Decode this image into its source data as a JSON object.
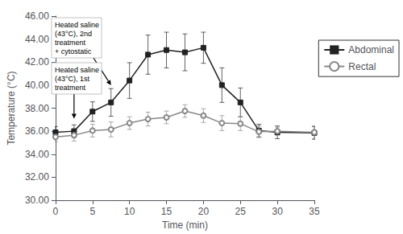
{
  "chart_data": {
    "type": "line",
    "xlabel": "Time (min)",
    "ylabel": "Temperature (°C)",
    "x": [
      0,
      2.5,
      5,
      7.5,
      10,
      12.5,
      15,
      17.5,
      20,
      22.5,
      25,
      27.5,
      30,
      35
    ],
    "series": [
      {
        "name": "Abdominal",
        "color": "#222222",
        "marker": "square",
        "values": [
          35.9,
          36.0,
          37.7,
          38.5,
          40.4,
          42.65,
          43.05,
          42.85,
          43.25,
          40.0,
          38.5,
          36.05,
          35.9,
          35.85
        ],
        "error": [
          0.5,
          0.55,
          0.85,
          1.2,
          1.55,
          1.7,
          1.55,
          1.6,
          1.35,
          1.5,
          1.25,
          0.55,
          0.55,
          0.55
        ]
      },
      {
        "name": "Rectal",
        "color": "#888888",
        "marker": "open_circle",
        "values": [
          35.5,
          35.65,
          36.05,
          36.15,
          36.7,
          37.05,
          37.2,
          37.75,
          37.35,
          36.7,
          36.65,
          35.95,
          36.0,
          35.9
        ],
        "error": [
          0.4,
          0.5,
          0.55,
          0.65,
          0.55,
          0.6,
          0.55,
          0.55,
          0.6,
          0.65,
          0.6,
          0.5,
          0.35,
          0.55
        ]
      }
    ],
    "xlim": [
      0,
      35
    ],
    "xticks": [
      0,
      5,
      10,
      15,
      20,
      25,
      30,
      35
    ],
    "ylim": [
      30,
      46
    ],
    "yticks": [
      {
        "value": 30,
        "label": "30.00"
      },
      {
        "value": 32,
        "label": "32.00"
      },
      {
        "value": 34,
        "label": "34.00"
      },
      {
        "value": 36,
        "label": "36.00"
      },
      {
        "value": 38,
        "label": "38.00"
      },
      {
        "value": 40,
        "label": "40.00"
      },
      {
        "value": 42,
        "label": "42.00"
      },
      {
        "value": 44,
        "label": "44.00"
      },
      {
        "value": 46,
        "label": "46.00"
      }
    ],
    "annotations": [
      {
        "text": "Heated saline\n(43°C), 1st\ntreatment",
        "x": 2.5,
        "y": 37.1
      },
      {
        "text": "Heated saline\n(43°C), 2nd\ntreatment\n+ cytostatic",
        "x": 7.5,
        "y": 40.0
      }
    ],
    "legend": "right",
    "grid": false
  }
}
